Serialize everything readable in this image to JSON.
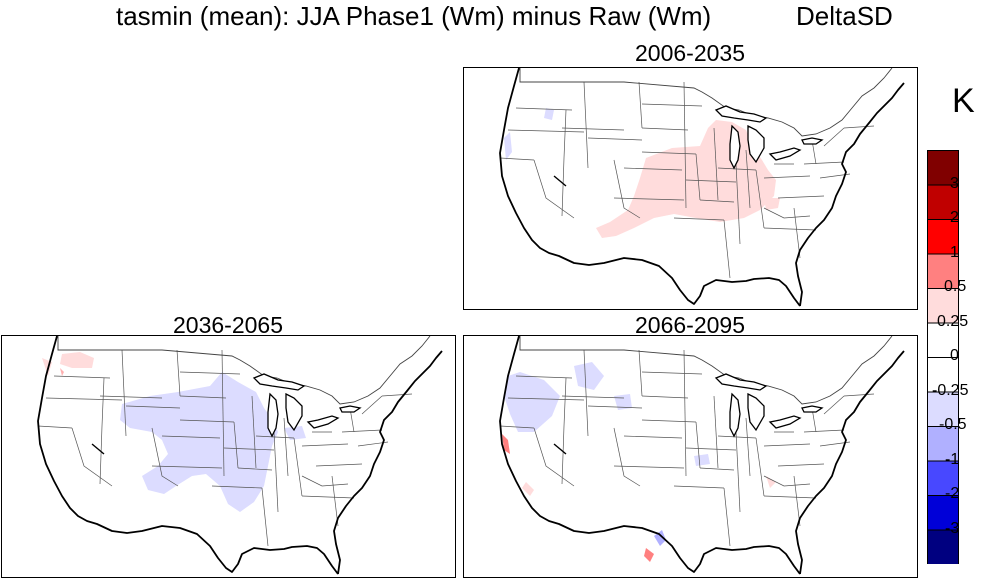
{
  "header": {
    "title": "tasmin (mean): JJA Phase1 (Wm) minus Raw (Wm)",
    "method": "DeltaSD"
  },
  "panels": [
    {
      "period": "2006-2035",
      "anomaly": "positive",
      "anomaly_level": "0.25 to 0.5"
    },
    {
      "period": "2036-2065",
      "anomaly": "negative",
      "anomaly_level": "-0.25 to -0.5"
    },
    {
      "period": "2066-2095",
      "anomaly": "mixed",
      "anomaly_level": "-0.25 to 0.5"
    }
  ],
  "legend": {
    "units": "K",
    "labels": [
      "3",
      "2",
      "1",
      "0.5",
      "0.25",
      "0",
      "-0.25",
      "-0.5",
      "-1",
      "-2",
      "-3"
    ],
    "colors": [
      "#800000",
      "#c00000",
      "#ff0000",
      "#ff8080",
      "#ffdcdc",
      "#ffffff",
      "#ffffff",
      "#dcdcff",
      "#b0b0ff",
      "#4848ff",
      "#0000d8",
      "#000080"
    ]
  }
}
